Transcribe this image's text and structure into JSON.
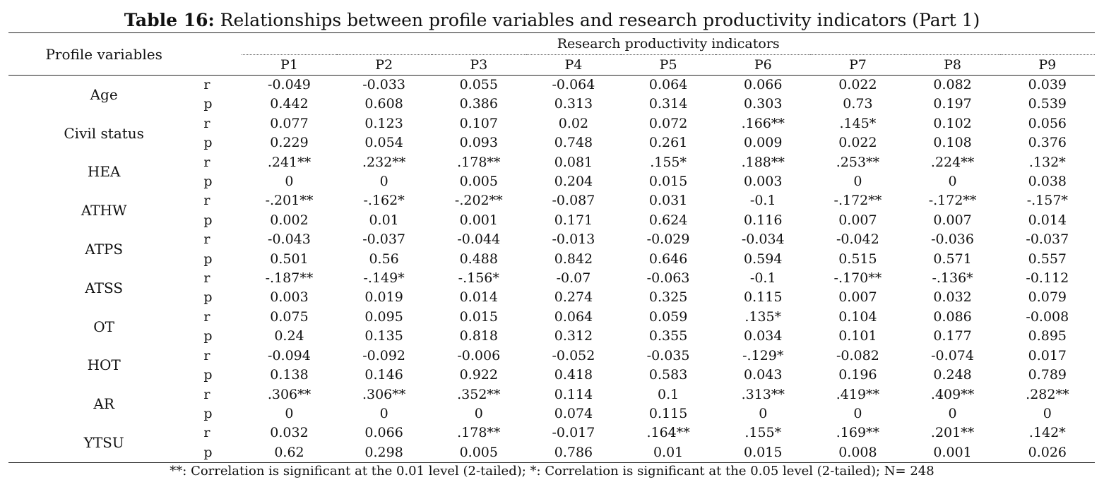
{
  "title": {
    "bold": "Table 16:",
    "text": " Relationships between profile variables and research productivity indicators (Part 1)"
  },
  "header": {
    "row_label": "Profile variables",
    "group_label": "Research productivity indicators",
    "columns": [
      "P1",
      "P2",
      "P3",
      "P4",
      "P5",
      "P6",
      "P7",
      "P8",
      "P9"
    ]
  },
  "rows": [
    {
      "label": "Age",
      "r": [
        "-0.049",
        "-0.033",
        "0.055",
        "-0.064",
        "0.064",
        "0.066",
        "0.022",
        "0.082",
        "0.039"
      ],
      "p": [
        "0.442",
        "0.608",
        "0.386",
        "0.313",
        "0.314",
        "0.303",
        "0.73",
        "0.197",
        "0.539"
      ]
    },
    {
      "label": "Civil status",
      "r": [
        "0.077",
        "0.123",
        "0.107",
        "0.02",
        "0.072",
        ".166**",
        ".145*",
        "0.102",
        "0.056"
      ],
      "p": [
        "0.229",
        "0.054",
        "0.093",
        "0.748",
        "0.261",
        "0.009",
        "0.022",
        "0.108",
        "0.376"
      ]
    },
    {
      "label": "HEA",
      "r": [
        ".241**",
        ".232**",
        ".178**",
        "0.081",
        ".155*",
        ".188**",
        ".253**",
        ".224**",
        ".132*"
      ],
      "p": [
        "0",
        "0",
        "0.005",
        "0.204",
        "0.015",
        "0.003",
        "0",
        "0",
        "0.038"
      ]
    },
    {
      "label": "ATHW",
      "r": [
        "-.201**",
        "-.162*",
        "-.202**",
        "-0.087",
        "0.031",
        "-0.1",
        "-.172**",
        "-.172**",
        "-.157*"
      ],
      "p": [
        "0.002",
        "0.01",
        "0.001",
        "0.171",
        "0.624",
        "0.116",
        "0.007",
        "0.007",
        "0.014"
      ]
    },
    {
      "label": "ATPS",
      "r": [
        "-0.043",
        "-0.037",
        "-0.044",
        "-0.013",
        "-0.029",
        "-0.034",
        "-0.042",
        "-0.036",
        "-0.037"
      ],
      "p": [
        "0.501",
        "0.56",
        "0.488",
        "0.842",
        "0.646",
        "0.594",
        "0.515",
        "0.571",
        "0.557"
      ]
    },
    {
      "label": "ATSS",
      "r": [
        "-.187**",
        "-.149*",
        "-.156*",
        "-0.07",
        "-0.063",
        "-0.1",
        "-.170**",
        "-.136*",
        "-0.112"
      ],
      "p": [
        "0.003",
        "0.019",
        "0.014",
        "0.274",
        "0.325",
        "0.115",
        "0.007",
        "0.032",
        "0.079"
      ]
    },
    {
      "label": "OT",
      "r": [
        "0.075",
        "0.095",
        "0.015",
        "0.064",
        "0.059",
        ".135*",
        "0.104",
        "0.086",
        "-0.008"
      ],
      "p": [
        "0.24",
        "0.135",
        "0.818",
        "0.312",
        "0.355",
        "0.034",
        "0.101",
        "0.177",
        "0.895"
      ]
    },
    {
      "label": "HOT",
      "r": [
        "-0.094",
        "-0.092",
        "-0.006",
        "-0.052",
        "-0.035",
        "-.129*",
        "-0.082",
        "-0.074",
        "0.017"
      ],
      "p": [
        "0.138",
        "0.146",
        "0.922",
        "0.418",
        "0.583",
        "0.043",
        "0.196",
        "0.248",
        "0.789"
      ]
    },
    {
      "label": "AR",
      "r": [
        ".306**",
        ".306**",
        ".352**",
        "0.114",
        "0.1",
        ".313**",
        ".419**",
        ".409**",
        ".282**"
      ],
      "p": [
        "0",
        "0",
        "0",
        "0.074",
        "0.115",
        "0",
        "0",
        "0",
        "0"
      ]
    },
    {
      "label": "YTSU",
      "r": [
        "0.032",
        "0.066",
        ".178**",
        "-0.017",
        ".164**",
        ".155*",
        ".169**",
        ".201**",
        ".142*"
      ],
      "p": [
        "0.62",
        "0.298",
        "0.005",
        "0.786",
        "0.01",
        "0.015",
        "0.008",
        "0.001",
        "0.026"
      ]
    }
  ],
  "stat_labels": {
    "r": "r",
    "p": "p"
  },
  "footnote": "**: Correlation is significant at the 0.01 level (2-tailed); *: Correlation is significant at the 0.05 level (2-tailed); N= 248"
}
